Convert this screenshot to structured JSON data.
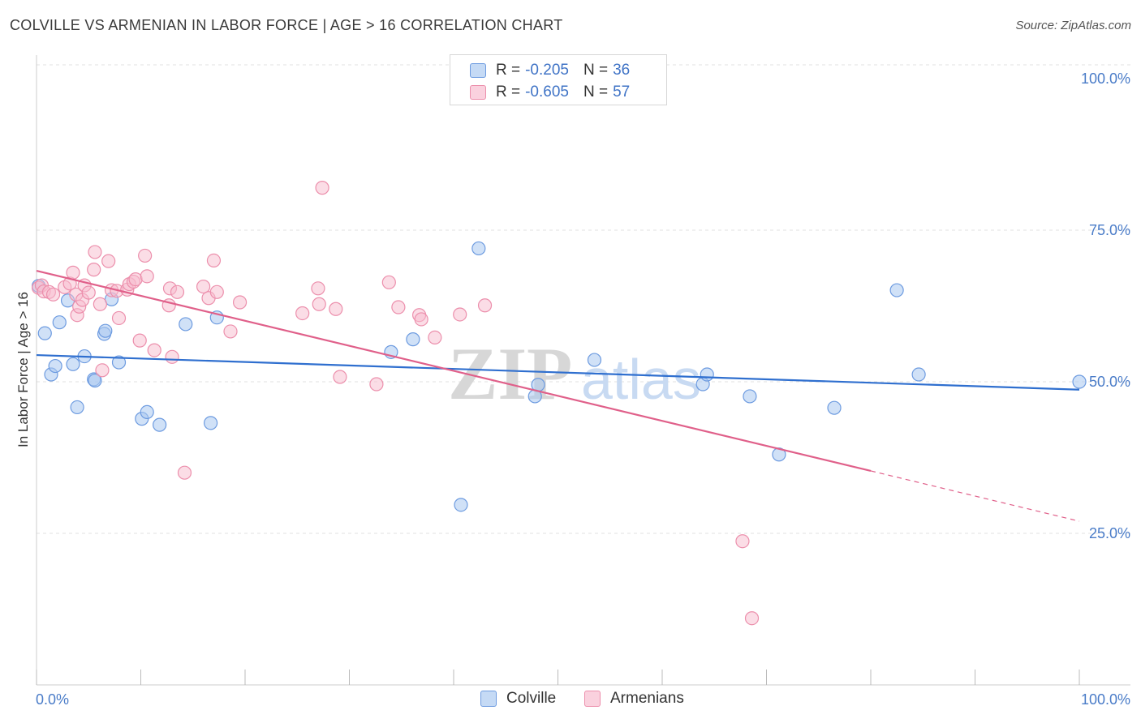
{
  "header": {
    "title": "COLVILLE VS ARMENIAN IN LABOR FORCE | AGE > 16 CORRELATION CHART",
    "source": "Source: ZipAtlas.com"
  },
  "legend": {
    "rows": [
      {
        "r_label": "R =",
        "r_value": "-0.205",
        "n_label": "N =",
        "n_value": "36"
      },
      {
        "r_label": "R =",
        "r_value": "-0.605",
        "n_label": "N =",
        "n_value": "57"
      }
    ],
    "bottom": [
      "Colville",
      "Armenians"
    ]
  },
  "watermark": {
    "zip": "ZIP",
    "atlas": "atlas"
  },
  "colors": {
    "colville_fill": "#a9c8f0",
    "colville_stroke": "#6d9be0",
    "colville_line": "#2f6fcf",
    "armenian_fill": "#f7bccd",
    "armenian_stroke": "#ec8fac",
    "armenian_line": "#e0608a",
    "tick_text": "#4a7cc8",
    "grid": "#e2e2e2"
  },
  "chart_data": {
    "type": "scatter",
    "title": "COLVILLE VS ARMENIAN IN LABOR FORCE | AGE > 16 CORRELATION CHART",
    "xlabel": "",
    "ylabel": "In Labor Force | Age > 16",
    "xlim": [
      0,
      100
    ],
    "ylim": [
      0,
      100
    ],
    "x_tick_labels": [
      "0.0%",
      "100.0%"
    ],
    "y_ticks": [
      25,
      50,
      75,
      100
    ],
    "y_tick_labels": [
      "25.0%",
      "50.0%",
      "75.0%",
      "100.0%"
    ],
    "grid": true,
    "series": [
      {
        "name": "Colville",
        "r": -0.205,
        "n": 36,
        "trend": {
          "x0": 0,
          "y0": 54.4,
          "x1": 100,
          "y1": 48.7
        },
        "points": [
          [
            0.2,
            65.8
          ],
          [
            0.8,
            58.0
          ],
          [
            1.4,
            51.2
          ],
          [
            1.8,
            52.6
          ],
          [
            2.2,
            59.8
          ],
          [
            3.0,
            63.4
          ],
          [
            3.5,
            52.9
          ],
          [
            3.9,
            45.8
          ],
          [
            4.6,
            54.2
          ],
          [
            5.5,
            50.4
          ],
          [
            5.6,
            50.2
          ],
          [
            6.5,
            57.9
          ],
          [
            6.6,
            58.4
          ],
          [
            7.2,
            63.6
          ],
          [
            7.9,
            53.2
          ],
          [
            10.1,
            43.9
          ],
          [
            10.6,
            45.0
          ],
          [
            11.8,
            42.9
          ],
          [
            14.3,
            59.5
          ],
          [
            16.7,
            43.2
          ],
          [
            17.3,
            60.6
          ],
          [
            34.0,
            54.9
          ],
          [
            36.1,
            57.0
          ],
          [
            40.7,
            29.7
          ],
          [
            42.4,
            72.0
          ],
          [
            47.8,
            47.6
          ],
          [
            48.1,
            49.5
          ],
          [
            53.5,
            53.6
          ],
          [
            63.9,
            49.6
          ],
          [
            64.3,
            51.2
          ],
          [
            68.4,
            47.6
          ],
          [
            71.2,
            38.0
          ],
          [
            76.5,
            45.7
          ],
          [
            82.5,
            65.1
          ],
          [
            84.6,
            51.2
          ],
          [
            100.0,
            50.0
          ]
        ]
      },
      {
        "name": "Armenians",
        "r": -0.605,
        "n": 57,
        "trend": {
          "x0": 0,
          "y0": 68.3,
          "x1": 80,
          "y1": 35.3,
          "dash_to_x": 100,
          "dash_to_y": 27.0
        },
        "points": [
          [
            0.2,
            65.5
          ],
          [
            0.5,
            65.9
          ],
          [
            0.7,
            64.9
          ],
          [
            1.2,
            64.8
          ],
          [
            1.6,
            64.4
          ],
          [
            2.7,
            65.6
          ],
          [
            3.2,
            66.2
          ],
          [
            3.5,
            68.0
          ],
          [
            3.8,
            64.4
          ],
          [
            3.9,
            61.0
          ],
          [
            4.1,
            62.4
          ],
          [
            4.4,
            63.5
          ],
          [
            4.6,
            65.9
          ],
          [
            5.0,
            64.7
          ],
          [
            5.5,
            68.5
          ],
          [
            5.6,
            71.4
          ],
          [
            6.1,
            62.8
          ],
          [
            6.3,
            51.9
          ],
          [
            6.9,
            69.9
          ],
          [
            7.2,
            65.1
          ],
          [
            7.7,
            65.0
          ],
          [
            7.9,
            60.5
          ],
          [
            8.7,
            65.2
          ],
          [
            8.9,
            66.1
          ],
          [
            9.3,
            66.5
          ],
          [
            9.5,
            66.9
          ],
          [
            9.9,
            56.8
          ],
          [
            10.4,
            70.8
          ],
          [
            10.6,
            67.4
          ],
          [
            11.3,
            55.2
          ],
          [
            12.7,
            62.6
          ],
          [
            12.8,
            65.4
          ],
          [
            13.0,
            54.1
          ],
          [
            13.5,
            64.8
          ],
          [
            14.2,
            35.0
          ],
          [
            16.0,
            65.7
          ],
          [
            16.5,
            63.8
          ],
          [
            17.0,
            70.0
          ],
          [
            17.3,
            64.8
          ],
          [
            18.6,
            58.3
          ],
          [
            19.5,
            63.1
          ],
          [
            25.5,
            61.3
          ],
          [
            27.0,
            65.4
          ],
          [
            27.1,
            62.8
          ],
          [
            27.4,
            82.0
          ],
          [
            28.7,
            62.0
          ],
          [
            29.1,
            50.8
          ],
          [
            32.6,
            49.6
          ],
          [
            33.8,
            66.4
          ],
          [
            34.7,
            62.3
          ],
          [
            36.7,
            61.0
          ],
          [
            36.9,
            60.3
          ],
          [
            38.2,
            57.3
          ],
          [
            40.6,
            61.1
          ],
          [
            43.0,
            62.6
          ],
          [
            67.7,
            23.7
          ],
          [
            68.6,
            11.0
          ]
        ]
      }
    ]
  }
}
